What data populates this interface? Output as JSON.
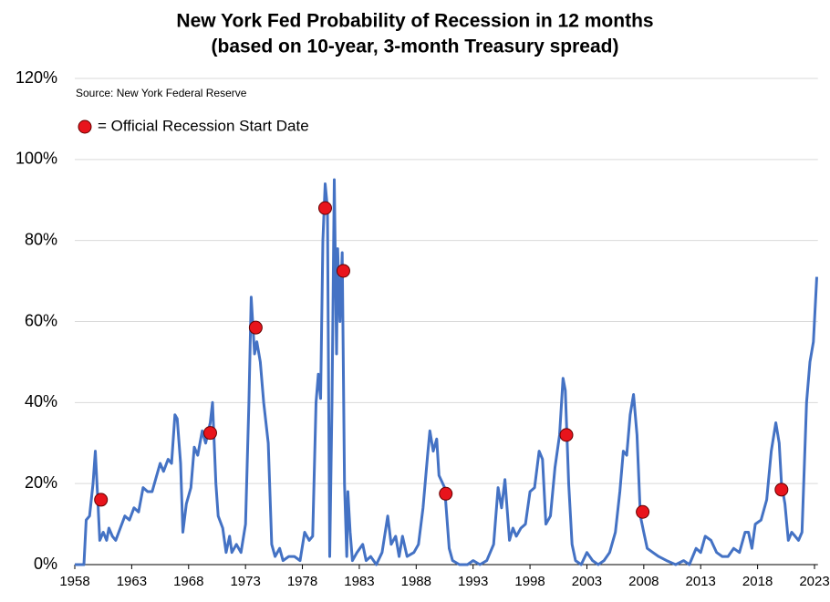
{
  "chart_data": {
    "type": "line",
    "title": "New York Fed Probability of Recession in 12 months",
    "subtitle": "(based on 10-year, 3-month Treasury spread)",
    "annotations": [
      "Source: New York Federal Reserve"
    ],
    "xlim": [
      1958,
      2023.3
    ],
    "xticks": [
      1958,
      1963,
      1968,
      1973,
      1978,
      1983,
      1988,
      1993,
      1998,
      2003,
      2008,
      2013,
      2018,
      2023
    ],
    "ylim": [
      0,
      120
    ],
    "yticks": [
      {
        "value": 0,
        "label": "0%"
      },
      {
        "value": 20,
        "label": "20%"
      },
      {
        "value": 40,
        "label": "40%"
      },
      {
        "value": 60,
        "label": "60%"
      },
      {
        "value": 80,
        "label": "80%"
      },
      {
        "value": 100,
        "label": "100%"
      },
      {
        "value": 120,
        "label": "120%"
      }
    ],
    "grid": true,
    "legend": "top-left",
    "series": [
      {
        "color": "#4472c4",
        "x": [
          1958.0,
          1958.8,
          1959.0,
          1959.3,
          1959.6,
          1959.8,
          1960.0,
          1960.2,
          1960.5,
          1960.8,
          1961.0,
          1961.3,
          1961.6,
          1962.0,
          1962.4,
          1962.8,
          1963.2,
          1963.6,
          1964.0,
          1964.4,
          1964.8,
          1965.2,
          1965.5,
          1965.8,
          1966.2,
          1966.5,
          1966.8,
          1967.0,
          1967.3,
          1967.5,
          1967.8,
          1968.2,
          1968.5,
          1968.8,
          1969.2,
          1969.5,
          1969.9,
          1970.1,
          1970.4,
          1970.6,
          1971.0,
          1971.3,
          1971.6,
          1971.8,
          1972.2,
          1972.6,
          1973.0,
          1973.3,
          1973.5,
          1973.8,
          1974.0,
          1974.3,
          1974.6,
          1975.0,
          1975.3,
          1975.6,
          1976.0,
          1976.3,
          1976.8,
          1977.3,
          1977.8,
          1978.2,
          1978.6,
          1978.9,
          1979.2,
          1979.4,
          1979.6,
          1979.8,
          1980.0,
          1980.2,
          1980.4,
          1980.6,
          1980.8,
          1981.0,
          1981.1,
          1981.3,
          1981.5,
          1981.7,
          1981.9,
          1982.0,
          1982.2,
          1982.4,
          1982.8,
          1983.3,
          1983.6,
          1984.0,
          1984.5,
          1985.0,
          1985.5,
          1985.8,
          1986.2,
          1986.5,
          1986.8,
          1987.2,
          1987.8,
          1988.2,
          1988.6,
          1989.0,
          1989.2,
          1989.5,
          1989.8,
          1990.0,
          1990.5,
          1990.9,
          1991.2,
          1991.8,
          1992.5,
          1993.0,
          1993.6,
          1994.2,
          1994.8,
          1995.2,
          1995.5,
          1995.8,
          1996.2,
          1996.5,
          1996.8,
          1997.2,
          1997.6,
          1998.0,
          1998.4,
          1998.8,
          1999.1,
          1999.4,
          1999.8,
          2000.2,
          2000.6,
          2000.9,
          2001.1,
          2001.4,
          2001.7,
          2002.0,
          2002.5,
          2003.0,
          2003.5,
          2004.0,
          2004.5,
          2005.0,
          2005.5,
          2005.9,
          2006.2,
          2006.5,
          2006.8,
          2007.1,
          2007.4,
          2007.7,
          2008.0,
          2008.3,
          2008.8,
          2009.3,
          2010.0,
          2010.8,
          2011.5,
          2012.0,
          2012.6,
          2013.0,
          2013.4,
          2013.9,
          2014.4,
          2014.9,
          2015.4,
          2015.9,
          2016.4,
          2016.9,
          2017.2,
          2017.5,
          2017.8,
          2018.3,
          2018.8,
          2019.2,
          2019.6,
          2019.9,
          2020.1,
          2020.4,
          2020.7,
          2021.0,
          2021.3,
          2021.6,
          2021.9,
          2022.3,
          2022.6,
          2022.9,
          2023.2
        ],
        "values": [
          0,
          0,
          11,
          12,
          20,
          28,
          17,
          6,
          8,
          6,
          9,
          7,
          6,
          9,
          12,
          11,
          14,
          13,
          19,
          18,
          18,
          22,
          25,
          23,
          26,
          25,
          37,
          36,
          25,
          8,
          15,
          19,
          29,
          27,
          33,
          30,
          35,
          40,
          20,
          12,
          9,
          3,
          7,
          3,
          5,
          3,
          10,
          40,
          66,
          52,
          55,
          50,
          40,
          30,
          5,
          2,
          4,
          1,
          2,
          2,
          1,
          8,
          6,
          7,
          40,
          47,
          41,
          80,
          94,
          88,
          2,
          40,
          95,
          52,
          78,
          60,
          77,
          20,
          2,
          18,
          8,
          1,
          3,
          5,
          1,
          2,
          0,
          3,
          12,
          5,
          7,
          2,
          7,
          2,
          3,
          5,
          14,
          27,
          33,
          28,
          31,
          22,
          19,
          4,
          1,
          0,
          0,
          1,
          0,
          1,
          5,
          19,
          14,
          21,
          6,
          9,
          7,
          9,
          10,
          18,
          19,
          28,
          26,
          10,
          12,
          24,
          32,
          46,
          43,
          20,
          5,
          1,
          0,
          3,
          1,
          0,
          1,
          3,
          8,
          18,
          28,
          27,
          37,
          42,
          32,
          12,
          8,
          4,
          3,
          2,
          1,
          0,
          1,
          0,
          4,
          3,
          7,
          6,
          3,
          2,
          2,
          4,
          3,
          8,
          8,
          4,
          10,
          11,
          16,
          28,
          35,
          30,
          20,
          15,
          6,
          8,
          7,
          6,
          8,
          40,
          50,
          55,
          71
        ]
      },
      {
        "name": "= Official Recession Start Date",
        "color": "#e8141c",
        "x": [
          1960.3,
          1969.9,
          1973.9,
          1980.0,
          1981.6,
          1990.6,
          2001.2,
          2007.9,
          2020.1
        ],
        "values": [
          16,
          32.5,
          58.5,
          88,
          72.5,
          17.5,
          32,
          13,
          18.5
        ]
      }
    ]
  }
}
